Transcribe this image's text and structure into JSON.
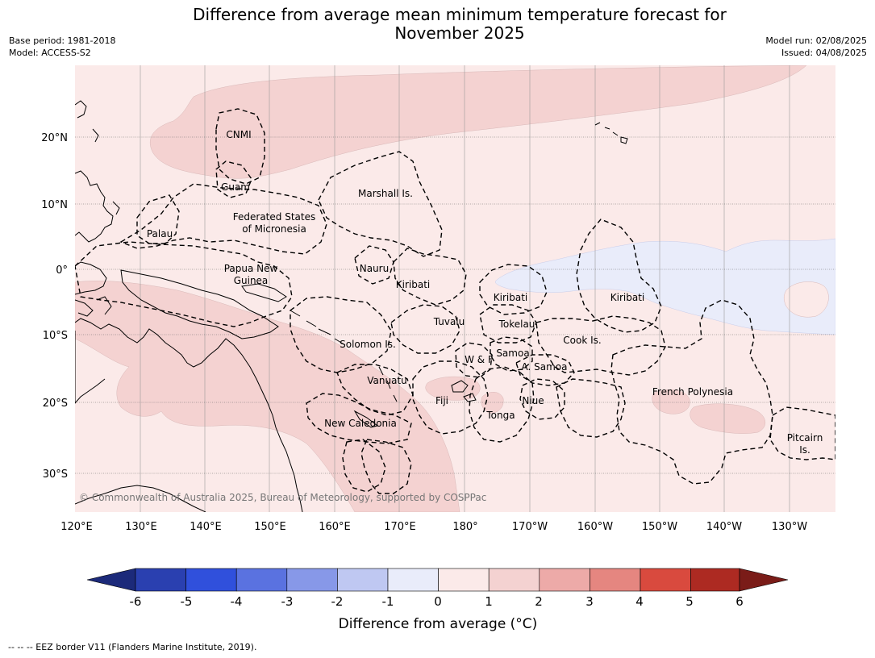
{
  "header": {
    "title_line1": "Difference from average mean minimum temperature forecast for",
    "title_line2": "November 2025",
    "base_period": "Base period: 1981-2018",
    "model": "Model: ACCESS-S2",
    "model_run": "Model run: 02/08/2025",
    "issued": "Issued: 04/08/2025"
  },
  "map": {
    "lon_ticks": [
      "120°E",
      "130°E",
      "140°E",
      "150°E",
      "160°E",
      "170°E",
      "180°",
      "170°W",
      "160°W",
      "150°W",
      "140°W",
      "130°W"
    ],
    "lat_ticks": [
      "20°N",
      "10°N",
      "0°",
      "10°S",
      "20°S",
      "30°S"
    ],
    "regions": {
      "cnmi": "CNMI",
      "guam": "Guam",
      "marshall": "Marshall Is.",
      "fsm_1": "Federated States",
      "fsm_2": "of Micronesia",
      "palau": "Palau",
      "png_1": "Papua New",
      "png_2": "Guinea",
      "nauru": "Nauru",
      "kiribati_w": "Kiribati",
      "kiribati_c": "Kiribati",
      "kiribati_e": "Kiribati",
      "tuvalu": "Tuvalu",
      "tokelau": "Tokelau",
      "cook": "Cook Is.",
      "solomon": "Solomon Is.",
      "samoa": "Samoa",
      "wf": "W & F",
      "asamoa": "A. Samoa",
      "vanuatu": "Vanuatu",
      "fiji": "Fiji",
      "niue": "Niue",
      "tonga": "Tonga",
      "frpoly": "French Polynesia",
      "newcal": "New Caledonia",
      "pitcairn_1": "Pitcairn",
      "pitcairn_2": "Is."
    },
    "copyright": "© Commonwealth of Australia 2025, Bureau of Meteorology, supported by COSPPac",
    "colors": {
      "anom_0_1": "#fbeae9",
      "anom_1_2": "#f4d2d1",
      "anom_m1_0": "#e9ecfa"
    }
  },
  "colorbar": {
    "ticks": [
      "-6",
      "-5",
      "-4",
      "-3",
      "-2",
      "-1",
      "0",
      "1",
      "2",
      "3",
      "4",
      "5",
      "6"
    ],
    "label": "Difference from average (°C)",
    "colors": [
      "#1c2a7a",
      "#2a40b0",
      "#3050dc",
      "#5a72e0",
      "#8798e8",
      "#bfc8f2",
      "#e9ecfa",
      "#fbeae9",
      "#f4d2d1",
      "#edaaa8",
      "#e58680",
      "#d94a3e",
      "#ad2a22",
      "#7a1c18"
    ]
  },
  "footer": {
    "legend": "--  --  -- EEZ border V11 (Flanders Marine Institute, 2019)."
  }
}
